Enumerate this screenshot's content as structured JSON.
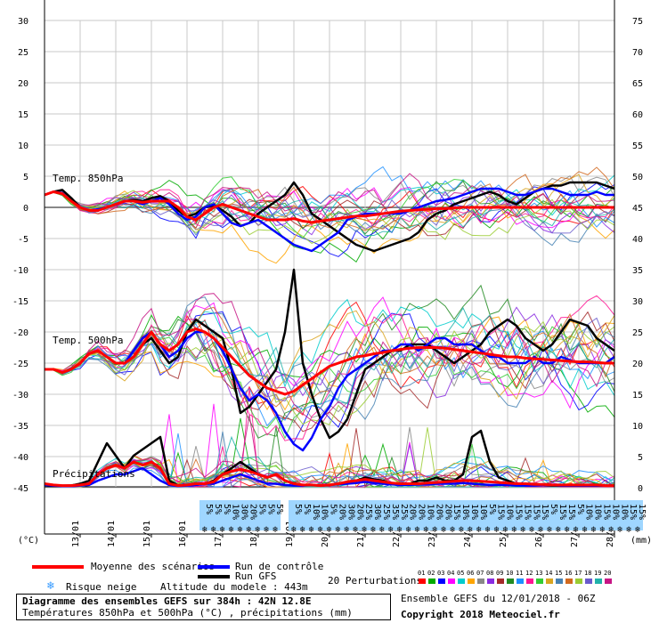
{
  "chart_data": {
    "type": "line",
    "left_axis": {
      "unit": "(°C)",
      "ticks": [
        30,
        25,
        20,
        15,
        10,
        5,
        0,
        -5,
        -10,
        -15,
        -20,
        -25,
        -30,
        -35,
        -40,
        -45
      ]
    },
    "right_axis": {
      "unit": "(mm)",
      "ticks": [
        75,
        70,
        65,
        60,
        55,
        50,
        45,
        40,
        35,
        30,
        25,
        20,
        15,
        10,
        5,
        0
      ]
    },
    "x_dates": [
      "13/01",
      "14/01",
      "15/01",
      "16/01",
      "17/01",
      "18/01",
      "19/01",
      "20/01",
      "21/01",
      "22/01",
      "23/01",
      "24/01",
      "25/01",
      "26/01",
      "27/01",
      "28/01"
    ],
    "panel_labels": {
      "t850": "Temp. 850hPa",
      "t500": "Temp. 500hPa",
      "precip": "Précipitations"
    },
    "x_hours": [
      0,
      6,
      12,
      18,
      24,
      30,
      36,
      42,
      48,
      54,
      60,
      66,
      72,
      78,
      84,
      90,
      96,
      102,
      108,
      114,
      120,
      126,
      132,
      138,
      144,
      150,
      156,
      162,
      168,
      174,
      180,
      186,
      192,
      198,
      204,
      210,
      216,
      222,
      228,
      234,
      240,
      246,
      252,
      258,
      264,
      270,
      276,
      282,
      288,
      294,
      300,
      306,
      312,
      318,
      324,
      330,
      336,
      342,
      348,
      354,
      360,
      366,
      372,
      378,
      384
    ],
    "series": [
      {
        "name": "Moyenne des scénarios",
        "color": "#ff0000",
        "t850": [
          2,
          2.5,
          2.2,
          1,
          0,
          -0.5,
          -0.5,
          0,
          0.5,
          1,
          1,
          0.8,
          1,
          1,
          1,
          0,
          -1.5,
          -2,
          -1,
          0,
          0.5,
          0,
          -0.5,
          -1,
          -1.5,
          -2,
          -2,
          -2,
          -1.8,
          -2.2,
          -2.4,
          -2.2,
          -2,
          -1.8,
          -1.6,
          -1.4,
          -1.4,
          -1.2,
          -1.0,
          -0.8,
          -0.6,
          -0.5,
          -0.4,
          -0.3,
          -0.2,
          -0.2,
          -0.1,
          0,
          0,
          0,
          0,
          0,
          0,
          0,
          0,
          0,
          0,
          0,
          0,
          0,
          0,
          0,
          0,
          0,
          0
        ],
        "t500": [
          -26,
          -26,
          -26.5,
          -26,
          -25,
          -23.5,
          -23,
          -24,
          -25,
          -25,
          -24,
          -22,
          -20,
          -22,
          -23,
          -22,
          -20,
          -19.5,
          -20,
          -21,
          -22.5,
          -24,
          -25.5,
          -27,
          -28,
          -29,
          -29.5,
          -30,
          -29.5,
          -28.5,
          -27.5,
          -26.5,
          -25.5,
          -25,
          -24.5,
          -24,
          -23.8,
          -23.5,
          -23.3,
          -23,
          -22.8,
          -22.6,
          -22.5,
          -22.5,
          -22.5,
          -22.6,
          -22.8,
          -23,
          -23.2,
          -23.4,
          -23.6,
          -23.8,
          -24,
          -24,
          -24.2,
          -24.3,
          -24.4,
          -24.5,
          -24.6,
          -24.7,
          -24.8,
          -24.8,
          -24.9,
          -25,
          -25
        ],
        "precip": [
          0.5,
          0.3,
          0.2,
          0.2,
          0.3,
          0.5,
          2,
          3,
          3.5,
          3,
          4,
          3.5,
          4,
          3,
          0.5,
          0.2,
          0.3,
          0.5,
          0.5,
          0.8,
          2,
          2.5,
          2.8,
          2.5,
          2,
          1.5,
          2,
          1,
          0.5,
          0.3,
          0.3,
          0.2,
          0.3,
          0.5,
          0.8,
          1,
          1.2,
          1,
          0.8,
          0.6,
          0.5,
          0.5,
          0.5,
          0.6,
          0.7,
          0.8,
          0.9,
          1,
          1,
          0.9,
          0.8,
          0.7,
          0.6,
          0.5,
          0.5,
          0.4,
          0.4,
          0.3,
          0.3,
          0.3,
          0.3,
          0.3,
          0.3,
          0.2,
          0.2
        ]
      },
      {
        "name": "Run de contrôle",
        "color": "#0000ff",
        "t850": [
          2,
          2.5,
          2.3,
          1,
          0,
          -0.5,
          -0.3,
          0,
          0.5,
          1,
          1,
          0.5,
          1,
          1.5,
          0.5,
          -1,
          -2,
          -1.5,
          0,
          0.5,
          -1,
          -2.5,
          -3,
          -2.5,
          -2,
          -3,
          -4,
          -5,
          -6,
          -6.5,
          -7,
          -6,
          -5,
          -4,
          -2,
          -1.5,
          -1,
          -1,
          -1,
          -1,
          -1,
          -0.5,
          0,
          0.5,
          1,
          1.2,
          1.5,
          2,
          2.5,
          3,
          3,
          3,
          2.5,
          2,
          2,
          2.5,
          3,
          3,
          2.5,
          2,
          2,
          2,
          2.5,
          2,
          2
        ],
        "t500": [
          -26,
          -26,
          -26.5,
          -26,
          -25,
          -23.5,
          -23,
          -24,
          -25,
          -25,
          -23,
          -21,
          -20,
          -22,
          -24,
          -23,
          -21,
          -20,
          -20,
          -21,
          -23,
          -26,
          -29,
          -31,
          -30,
          -31,
          -33,
          -36,
          -38,
          -39,
          -37,
          -34,
          -32,
          -29,
          -27,
          -26,
          -25,
          -24,
          -23,
          -23,
          -22,
          -22,
          -23,
          -22,
          -21,
          -21,
          -22,
          -22,
          -22,
          -23,
          -24,
          -24,
          -25,
          -25,
          -25,
          -24,
          -25,
          -25,
          -24,
          -24.5,
          -25,
          -25,
          -25,
          -25,
          -24
        ],
        "precip": [
          0.3,
          0.2,
          0.1,
          0.1,
          0.2,
          0.3,
          1,
          1.5,
          2,
          2,
          2.5,
          3,
          2,
          1,
          0.3,
          0.1,
          0.2,
          0.3,
          0.5,
          0.5,
          1,
          1.5,
          2,
          1.5,
          1,
          0.5,
          0.5,
          0.3,
          0.2,
          0.2,
          0.3,
          0.2,
          0.3,
          0.4,
          0.5,
          0.6,
          0.8,
          0.6,
          0.5,
          0.4,
          0.3,
          0.3,
          0.4,
          0.4,
          0.5,
          0.5,
          0.5,
          0.6,
          0.5,
          0.4,
          0.3,
          0.3,
          0.3,
          0.2,
          0.2,
          0.2,
          0.3,
          0.3,
          0.2,
          0.2,
          0.2,
          0.2,
          0.2,
          0.2,
          0.2
        ]
      },
      {
        "name": "Run GFS",
        "color": "#000000",
        "t850": [
          2,
          2.5,
          2.8,
          1.5,
          0,
          -0.5,
          -0.5,
          0,
          0.5,
          1,
          1.2,
          1,
          1.5,
          1.8,
          1,
          -0.5,
          -1.5,
          -1,
          0,
          0.3,
          -0.5,
          -1.5,
          -3,
          -2.5,
          -1,
          0,
          1,
          2,
          4,
          2,
          -1,
          -2,
          -3,
          -4,
          -5,
          -6,
          -6.5,
          -7,
          -6.5,
          -6,
          -5.5,
          -5,
          -4,
          -2,
          -1,
          -0.5,
          0.5,
          1,
          1.5,
          2,
          2.5,
          2,
          1,
          0.5,
          1.5,
          2.5,
          3,
          3.5,
          3.5,
          4,
          4,
          4,
          4,
          3.5,
          3
        ],
        "t500": [
          -26,
          -26,
          -26.5,
          -26,
          -25,
          -23.5,
          -23,
          -24,
          -25,
          -25,
          -24,
          -22,
          -21,
          -23,
          -25,
          -24,
          -20,
          -18,
          -19,
          -20,
          -21,
          -26,
          -33,
          -32,
          -30,
          -28,
          -26,
          -20,
          -10,
          -25,
          -30,
          -34,
          -37,
          -36,
          -34,
          -30,
          -26,
          -25,
          -24,
          -23,
          -23,
          -22,
          -22,
          -22,
          -23,
          -24,
          -25,
          -24,
          -23,
          -22,
          -20,
          -19,
          -18,
          -19,
          -21,
          -22,
          -23,
          -22,
          -20,
          -18,
          -18.5,
          -19,
          -21,
          -22,
          -23
        ],
        "precip": [
          0.3,
          0.2,
          0.2,
          0.2,
          0.5,
          1,
          4,
          7,
          5,
          3,
          5,
          6,
          7,
          8,
          1,
          0.2,
          0.3,
          0.5,
          0.5,
          1,
          2,
          3,
          4,
          3,
          2,
          1.5,
          2,
          1,
          0.5,
          0.3,
          0.3,
          0.2,
          0.3,
          0.5,
          0.8,
          1,
          1.5,
          1.2,
          1,
          0.5,
          0.5,
          0.5,
          1,
          1,
          1.5,
          1,
          1,
          2,
          8,
          9,
          4,
          1.5,
          1,
          0.5,
          0.5,
          0.3,
          0.3,
          0.2,
          0.2,
          0.2,
          0.2,
          0.2,
          0.2,
          0.2,
          0.2
        ]
      }
    ],
    "perturbation_colors": [
      "#ff0000",
      "#00aa00",
      "#0000ff",
      "#ff00ff",
      "#00cccc",
      "#ffa500",
      "#888888",
      "#8a2be2",
      "#a52a2a",
      "#228b22",
      "#1e90ff",
      "#ff1493",
      "#32cd32",
      "#daa520",
      "#4682b4",
      "#d2691e",
      "#9acd32",
      "#6a5acd",
      "#20b2aa",
      "#c71585"
    ]
  },
  "snow_risk": {
    "labels": [
      "5%",
      "5%",
      "5%",
      "10%",
      "30%",
      "20%",
      "5%",
      "5%",
      "5%",
      "5%",
      "5%",
      "10%",
      "10%",
      "5%",
      "20%",
      "30%",
      "20%",
      "25%",
      "30%",
      "25%",
      "35%",
      "25%",
      "20%",
      "20%",
      "10%",
      "20%",
      "20%",
      "15%",
      "10%",
      "10%",
      "10%",
      "5%",
      "15%",
      "10%",
      "15%",
      "15%",
      "15%",
      "15%",
      "5%",
      "15%",
      "15%",
      "5%",
      "10%",
      "10%",
      "15%",
      "10%",
      "10%",
      "15%",
      "15%"
    ]
  },
  "legend": {
    "mean": "Moyenne des scénarios",
    "control": "Run de contrôle",
    "gfs": "Run GFS",
    "snow": "Risque neige",
    "altitude": "Altitude du modele : 443m",
    "perturbations": "20 Perturbations",
    "pert_numbers": [
      "01",
      "02",
      "03",
      "04",
      "05",
      "06",
      "07",
      "08",
      "09",
      "10",
      "11",
      "12",
      "13",
      "14",
      "15",
      "16",
      "17",
      "18",
      "19",
      "20"
    ],
    "colors": {
      "mean": "#ff0000",
      "control": "#0000ff",
      "gfs": "#000000"
    }
  },
  "info": {
    "title": "Diagramme des ensembles GEFS sur 384h : 42N 12.8E",
    "subtitle": "Températures 850hPa et 500hPa (°C) , précipitations (mm)",
    "run": "Ensemble GEFS du 12/01/2018 - 06Z",
    "copyright": "Copyright 2018 Meteociel.fr"
  }
}
